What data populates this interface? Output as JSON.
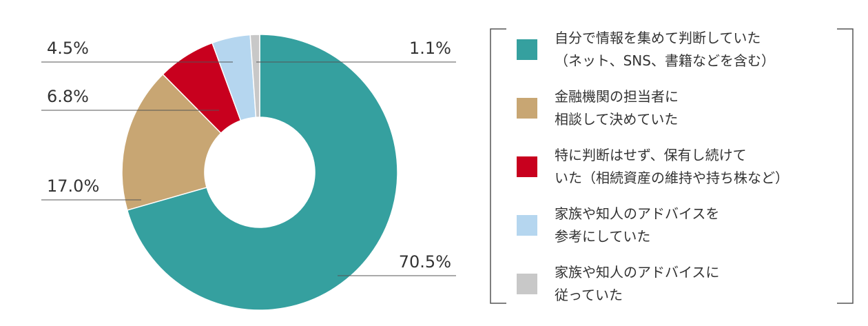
{
  "chart_data": {
    "type": "donut",
    "series": [
      {
        "name": "自分で情報を集めて判断していた\n（ネット、SNS、書籍などを含む）",
        "color": "#35a09f"
      },
      {
        "name": "金融機関の担当者に\n相談して決めていた",
        "color": "#c8a673"
      },
      {
        "name": "特に判断はせず、保有し続けて\nいた（相続資産の維持や持ち株など）",
        "color": "#c8001e"
      },
      {
        "name": "家族や知人のアドバイスを\n参考にしていた",
        "color": "#b5d6ef"
      },
      {
        "name": "家族や知人のアドバイスに\n従っていた",
        "color": "#c8c8c8"
      }
    ],
    "values": [
      70.5,
      17.0,
      6.8,
      4.5,
      1.1
    ],
    "value_labels": [
      "70.5%",
      "17.0%",
      "6.8%",
      "4.5%",
      "1.1%"
    ]
  }
}
